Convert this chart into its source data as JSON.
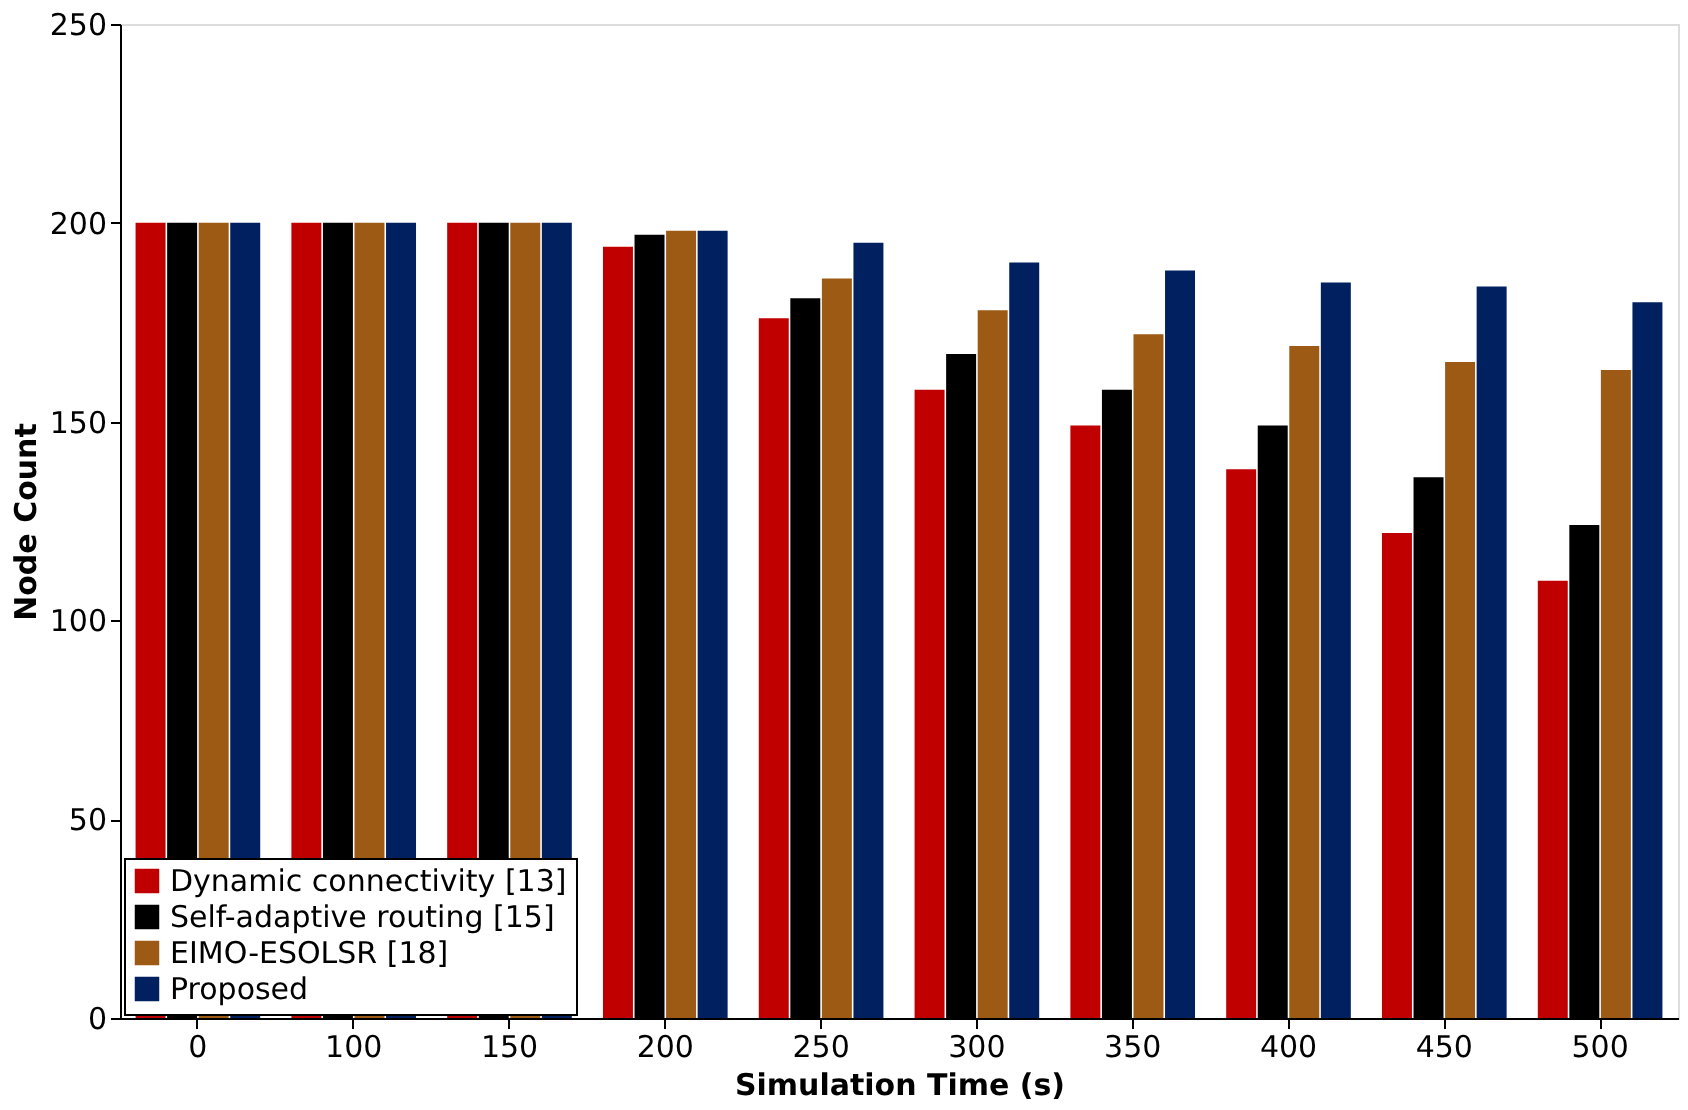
{
  "chart_data": {
    "type": "bar",
    "xlabel": "Simulation Time (s)",
    "ylabel": "Node Count",
    "categories": [
      "0",
      "100",
      "150",
      "200",
      "250",
      "300",
      "350",
      "400",
      "450",
      "500"
    ],
    "ylim": [
      0,
      250
    ],
    "yticks": [
      0,
      50,
      100,
      150,
      200,
      250
    ],
    "grid": false,
    "legend": "bottom left",
    "series": [
      {
        "name": "Dynamic connectivity [13]",
        "color": "#c00000",
        "values": [
          200,
          200,
          200,
          194,
          176,
          158,
          149,
          138,
          122,
          110
        ]
      },
      {
        "name": "Self-adaptive routing [15]",
        "color": "#000000",
        "values": [
          200,
          200,
          200,
          197,
          181,
          167,
          158,
          149,
          136,
          124
        ]
      },
      {
        "name": "EIMO-ESOLSR [18]",
        "color": "#9c5a14",
        "values": [
          200,
          200,
          200,
          198,
          186,
          178,
          172,
          169,
          165,
          163
        ]
      },
      {
        "name": "Proposed",
        "color": "#002060",
        "values": [
          200,
          200,
          200,
          198,
          195,
          190,
          188,
          185,
          184,
          180
        ]
      }
    ]
  }
}
